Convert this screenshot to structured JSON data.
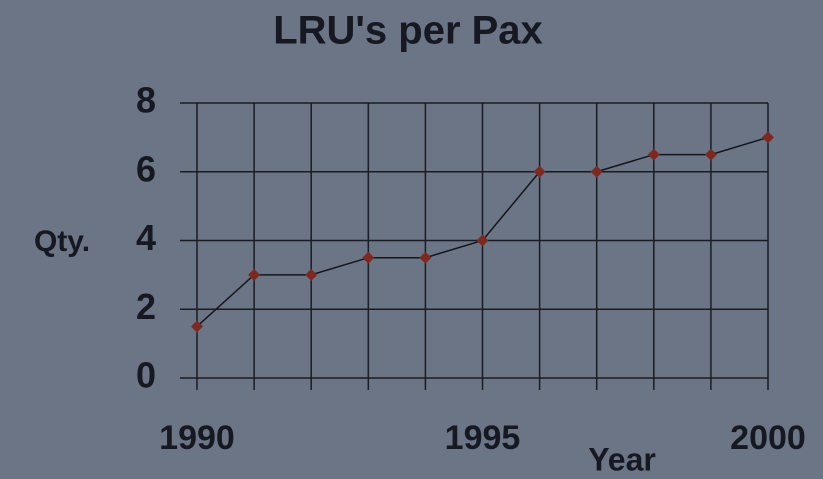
{
  "chart_data": {
    "type": "line",
    "title": "LRU's per Pax",
    "x": [
      1990,
      1991,
      1992,
      1993,
      1994,
      1995,
      1996,
      1997,
      1998,
      1999,
      2000
    ],
    "series": [
      {
        "name": "LRU's per Pax",
        "color": "#7a2a22",
        "values": [
          1.5,
          3,
          3,
          3.5,
          3.5,
          4,
          6,
          6,
          6.5,
          6.5,
          7
        ]
      }
    ],
    "xlim": [
      1990,
      2000
    ],
    "xticks": [
      1990,
      1995,
      2000
    ],
    "ylim": [
      0,
      8
    ],
    "yticks": [
      0,
      2,
      4,
      6,
      8
    ],
    "x_label": "Year",
    "y_label": "Qty.",
    "grid": true
  }
}
